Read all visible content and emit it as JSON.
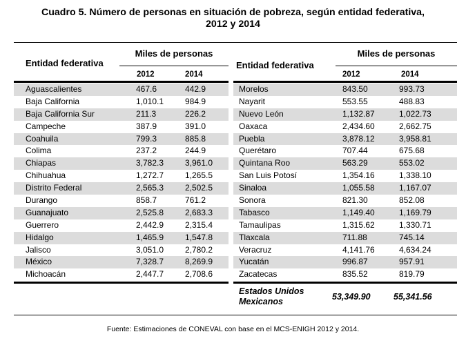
{
  "title": {
    "line1": "Cuadro 5. Número de personas en situación de pobreza, según entidad federativa,",
    "line2": "2012 y 2014"
  },
  "header": {
    "entity_label": "Entidad federativa",
    "group_label": "Miles de personas",
    "year1": "2012",
    "year2": "2014"
  },
  "left_rows": [
    {
      "entity": "Aguascalientes",
      "y2012": "467.6",
      "y2014": "442.9"
    },
    {
      "entity": "Baja California",
      "y2012": "1,010.1",
      "y2014": "984.9"
    },
    {
      "entity": "Baja California Sur",
      "y2012": "211.3",
      "y2014": "226.2"
    },
    {
      "entity": "Campeche",
      "y2012": "387.9",
      "y2014": "391.0"
    },
    {
      "entity": "Coahuila",
      "y2012": "799.3",
      "y2014": "885.8"
    },
    {
      "entity": "Colima",
      "y2012": "237.2",
      "y2014": "244.9"
    },
    {
      "entity": "Chiapas",
      "y2012": "3,782.3",
      "y2014": "3,961.0"
    },
    {
      "entity": "Chihuahua",
      "y2012": "1,272.7",
      "y2014": "1,265.5"
    },
    {
      "entity": "Distrito Federal",
      "y2012": "2,565.3",
      "y2014": "2,502.5"
    },
    {
      "entity": "Durango",
      "y2012": "858.7",
      "y2014": "761.2"
    },
    {
      "entity": "Guanajuato",
      "y2012": "2,525.8",
      "y2014": "2,683.3"
    },
    {
      "entity": "Guerrero",
      "y2012": "2,442.9",
      "y2014": "2,315.4"
    },
    {
      "entity": "Hidalgo",
      "y2012": "1,465.9",
      "y2014": "1,547.8"
    },
    {
      "entity": "Jalisco",
      "y2012": "3,051.0",
      "y2014": "2,780.2"
    },
    {
      "entity": "México",
      "y2012": "7,328.7",
      "y2014": "8,269.9"
    },
    {
      "entity": "Michoacán",
      "y2012": "2,447.7",
      "y2014": "2,708.6"
    }
  ],
  "right_rows": [
    {
      "entity": "Morelos",
      "y2012": "843.50",
      "y2014": "993.73"
    },
    {
      "entity": "Nayarit",
      "y2012": "553.55",
      "y2014": "488.83"
    },
    {
      "entity": "Nuevo León",
      "y2012": "1,132.87",
      "y2014": "1,022.73"
    },
    {
      "entity": "Oaxaca",
      "y2012": "2,434.60",
      "y2014": "2,662.75"
    },
    {
      "entity": "Puebla",
      "y2012": "3,878.12",
      "y2014": "3,958.81"
    },
    {
      "entity": "Querétaro",
      "y2012": "707.44",
      "y2014": "675.68"
    },
    {
      "entity": "Quintana Roo",
      "y2012": "563.29",
      "y2014": "553.02"
    },
    {
      "entity": "San Luis Potosí",
      "y2012": "1,354.16",
      "y2014": "1,338.10"
    },
    {
      "entity": "Sinaloa",
      "y2012": "1,055.58",
      "y2014": "1,167.07"
    },
    {
      "entity": "Sonora",
      "y2012": "821.30",
      "y2014": "852.08"
    },
    {
      "entity": "Tabasco",
      "y2012": "1,149.40",
      "y2014": "1,169.79"
    },
    {
      "entity": "Tamaulipas",
      "y2012": "1,315.62",
      "y2014": "1,330.71"
    },
    {
      "entity": "Tlaxcala",
      "y2012": "711.88",
      "y2014": "745.14"
    },
    {
      "entity": "Veracruz",
      "y2012": "4,141.76",
      "y2014": "4,634.24"
    },
    {
      "entity": "Yucatán",
      "y2012": "996.87",
      "y2014": "957.91"
    },
    {
      "entity": "Zacatecas",
      "y2012": "835.52",
      "y2014": "819.79"
    }
  ],
  "total": {
    "entity_line1": "Estados Unidos",
    "entity_line2": "Mexicanos",
    "y2012": "53,349.90",
    "y2014": "55,341.56"
  },
  "footer": "Fuente: Estimaciones de CONEVAL con base en el MCS-ENIGH 2012 y 2014.",
  "colors": {
    "row_shade": "#dcdcdc",
    "rule": "#000000"
  }
}
